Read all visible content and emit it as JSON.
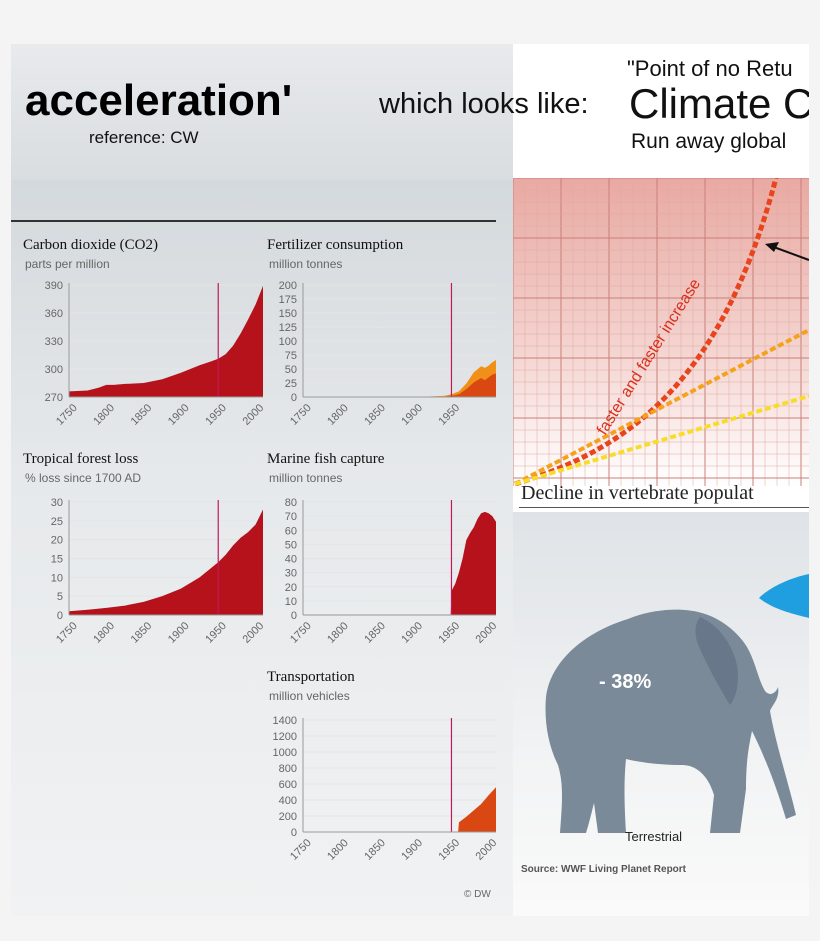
{
  "header": {
    "title": "acceleration'",
    "reference": "reference: CW",
    "which_looks_like": "which looks like:",
    "point_of_no_return": "\"Point of no Retu",
    "climate": "Climate C",
    "run_away": "Run away global"
  },
  "copyright": "© DW",
  "chart_data": [
    {
      "id": "co2",
      "type": "area",
      "title": "Carbon dioxide (CO2)",
      "unit": "parts per million",
      "x_ticks": [
        1750,
        1800,
        1850,
        1900,
        1950,
        2000
      ],
      "y_ticks": [
        270,
        300,
        330,
        360,
        390
      ],
      "ylim": [
        270,
        390
      ],
      "xlim": [
        1750,
        2010
      ],
      "marker_year": 1950,
      "colors": [
        "#b5121b"
      ],
      "x": [
        1750,
        1775,
        1790,
        1800,
        1810,
        1825,
        1850,
        1875,
        1900,
        1925,
        1940,
        1950,
        1960,
        1970,
        1980,
        1990,
        2000,
        2010
      ],
      "series": [
        {
          "values": [
            276,
            277,
            280,
            283,
            283,
            284,
            285,
            289,
            296,
            304,
            308,
            311,
            316,
            325,
            338,
            353,
            369,
            389
          ]
        }
      ]
    },
    {
      "id": "fertilizer",
      "type": "area",
      "title": "Fertilizer consumption",
      "unit": "million tonnes",
      "x_ticks": [
        1750,
        1800,
        1850,
        1900,
        1950
      ],
      "y_ticks": [
        0,
        25,
        50,
        75,
        100,
        125,
        150,
        175,
        200
      ],
      "ylim": [
        0,
        200
      ],
      "xlim": [
        1750,
        2010
      ],
      "marker_year": 1950,
      "colors": [
        "#f7c72a",
        "#f19019",
        "#d94813"
      ],
      "x": [
        1750,
        1900,
        1920,
        1940,
        1950,
        1960,
        1970,
        1980,
        1990,
        1995,
        2000,
        2005,
        2010
      ],
      "series": [
        {
          "values": [
            0,
            0,
            1,
            2,
            4,
            9,
            21,
            40,
            55,
            52,
            55,
            60,
            62
          ]
        },
        {
          "values": [
            0,
            0,
            1,
            2,
            5,
            10,
            24,
            44,
            55,
            52,
            56,
            62,
            66
          ]
        },
        {
          "values": [
            0,
            0,
            0,
            1,
            2,
            5,
            14,
            26,
            34,
            30,
            35,
            40,
            42
          ]
        }
      ]
    },
    {
      "id": "forest",
      "type": "area",
      "title": "Tropical forest loss",
      "unit": "% loss since 1700 AD",
      "x_ticks": [
        1750,
        1800,
        1850,
        1900,
        1950,
        2000
      ],
      "y_ticks": [
        0,
        5,
        10,
        15,
        20,
        25,
        30
      ],
      "ylim": [
        0,
        30
      ],
      "xlim": [
        1750,
        2010
      ],
      "marker_year": 1950,
      "colors": [
        "#b5121b"
      ],
      "x": [
        1750,
        1775,
        1800,
        1825,
        1850,
        1875,
        1900,
        1925,
        1950,
        1960,
        1970,
        1980,
        1990,
        2000,
        2010
      ],
      "series": [
        {
          "values": [
            1,
            1.4,
            1.9,
            2.5,
            3.5,
            5,
            7,
            10,
            14,
            16,
            18.5,
            20.5,
            22,
            24,
            28
          ]
        }
      ]
    },
    {
      "id": "fish",
      "type": "area",
      "title": "Marine fish capture",
      "unit": "million tonnes",
      "x_ticks": [
        1750,
        1800,
        1850,
        1900,
        1950,
        2000
      ],
      "y_ticks": [
        0,
        10,
        20,
        30,
        40,
        50,
        60,
        70,
        80
      ],
      "ylim": [
        0,
        80
      ],
      "xlim": [
        1750,
        2010
      ],
      "marker_year": 1950,
      "colors": [
        "#b5121b"
      ],
      "x": [
        1750,
        1949,
        1950,
        1955,
        1960,
        1965,
        1970,
        1975,
        1980,
        1985,
        1990,
        1995,
        2000,
        2005,
        2010
      ],
      "series": [
        {
          "values": [
            0,
            0,
            17,
            22,
            30,
            40,
            53,
            58,
            62,
            68,
            72,
            73,
            72,
            70,
            66
          ]
        }
      ]
    },
    {
      "id": "transport",
      "type": "area",
      "title": "Transportation",
      "unit": "million vehicles",
      "x_ticks": [
        1750,
        1800,
        1850,
        1900,
        1950,
        2000
      ],
      "y_ticks": [
        0,
        200,
        400,
        600,
        800,
        1000,
        1200,
        1400
      ],
      "ylim": [
        0,
        1400
      ],
      "xlim": [
        1750,
        2010
      ],
      "marker_year": 1950,
      "colors": [
        "#f7c72a",
        "#f19019",
        "#d94813"
      ],
      "x": [
        1750,
        1959,
        1960,
        1970,
        1980,
        1990,
        2000,
        2010
      ],
      "series": [
        {
          "values": [
            0,
            0,
            40,
            60,
            90,
            120,
            180,
            250
          ]
        },
        {
          "values": [
            0,
            0,
            60,
            90,
            120,
            170,
            240,
            330
          ]
        },
        {
          "values": [
            0,
            0,
            120,
            190,
            270,
            350,
            460,
            560
          ]
        }
      ]
    },
    {
      "id": "climate-graph",
      "type": "line",
      "annotation": "faster and faster increase",
      "colors": [
        "#e8441d",
        "#f5a21b",
        "#f7dd2a"
      ]
    }
  ],
  "decline": {
    "title": "Decline in vertebrate populat",
    "percent": "- 38%",
    "label": "Terrestrial",
    "source": "Source: WWF Living Planet Report",
    "colors": {
      "elephant": "#7a8a99",
      "fish": "#1f9fe0"
    }
  }
}
